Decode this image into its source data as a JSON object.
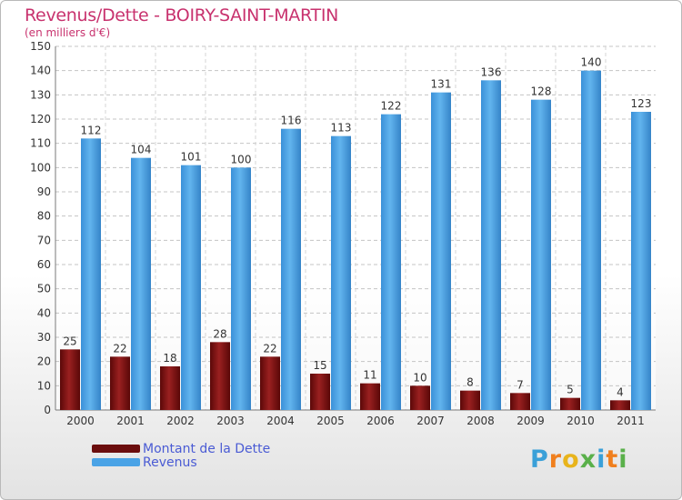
{
  "header": {
    "title": "Revenus/Dette - BOIRY-SAINT-MARTIN",
    "subtitle": "(en milliers d'€)"
  },
  "chart_data": {
    "type": "bar",
    "title": "Revenus/Dette - BOIRY-SAINT-MARTIN",
    "ylabel": "(en milliers d'€)",
    "xlabel": "",
    "ylim": [
      0,
      150
    ],
    "y_ticks": [
      0,
      10,
      20,
      30,
      40,
      50,
      60,
      70,
      80,
      90,
      100,
      110,
      120,
      130,
      140,
      150
    ],
    "grid": true,
    "legend_position": "bottom-left",
    "categories": [
      "2000",
      "2001",
      "2002",
      "2003",
      "2004",
      "2005",
      "2006",
      "2007",
      "2008",
      "2009",
      "2010",
      "2011"
    ],
    "series": [
      {
        "name": "Montant de la Dette",
        "color": "#8a1717",
        "values": [
          25,
          22,
          18,
          28,
          22,
          15,
          11,
          10,
          8,
          7,
          5,
          4
        ]
      },
      {
        "name": "Revenus",
        "color": "#4aa3e6",
        "values": [
          112,
          104,
          101,
          100,
          116,
          113,
          122,
          131,
          136,
          128,
          140,
          123
        ]
      }
    ]
  },
  "legend": {
    "items": [
      {
        "label": "Montant de la Dette",
        "color": "#6b0d0d"
      },
      {
        "label": "Revenus",
        "color": "#4aa3e6"
      }
    ]
  },
  "logo": {
    "text": "Proxiti",
    "letters": [
      {
        "ch": "P",
        "color": "#3aa0d8"
      },
      {
        "ch": "r",
        "color": "#f07f1e"
      },
      {
        "ch": "o",
        "color": "#e8b41c"
      },
      {
        "ch": "x",
        "color": "#5ab04a"
      },
      {
        "ch": "i",
        "color": "#3aa0d8"
      },
      {
        "ch": "t",
        "color": "#f07f1e"
      },
      {
        "ch": "i",
        "color": "#5ab04a"
      }
    ]
  }
}
